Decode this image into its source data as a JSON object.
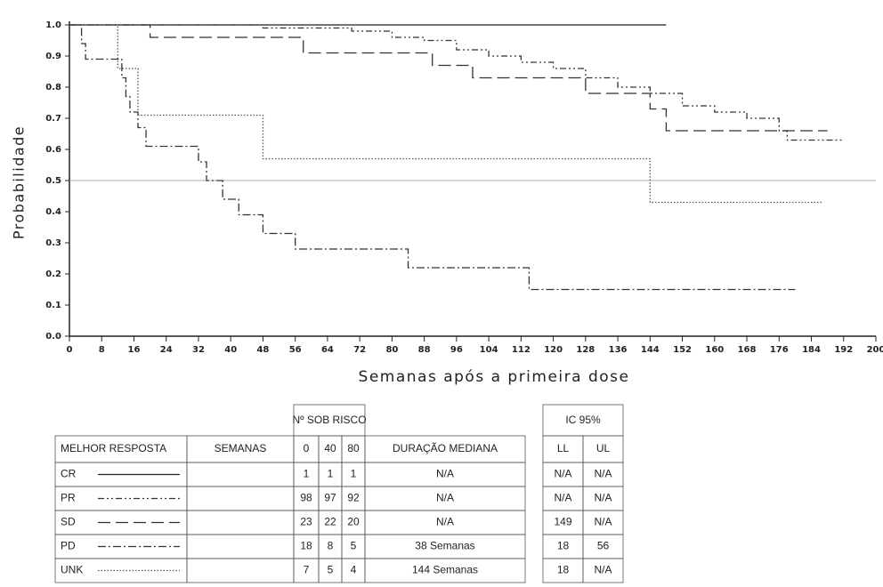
{
  "chart_data": {
    "type": "step",
    "y_label": "Probabilidade",
    "x_label": "Semanas após a primeira dose",
    "xlim": [
      0,
      200
    ],
    "xticks": [
      0,
      8,
      16,
      24,
      32,
      40,
      48,
      56,
      64,
      72,
      80,
      88,
      96,
      104,
      112,
      120,
      128,
      136,
      144,
      152,
      160,
      168,
      176,
      184,
      192,
      200
    ],
    "ylim": [
      0,
      1
    ],
    "yticks": [
      {
        "value": 0,
        "label": "0.0"
      },
      0.1,
      0.2,
      0.3,
      0.4,
      0.5,
      0.6,
      0.7,
      0.8,
      0.9,
      {
        "value": 1,
        "label": "1.0"
      }
    ],
    "reference_line": 0.5,
    "series": [
      {
        "name": "CR",
        "color": "#222222",
        "line_style": "solid",
        "x": [
          0,
          148
        ],
        "values": [
          1,
          1
        ]
      },
      {
        "name": "PR",
        "color": "#333333",
        "line_style": "dash-dot-dot",
        "x": [
          0,
          48,
          70,
          80,
          88,
          96,
          104,
          112,
          120,
          128,
          136,
          144,
          152,
          160,
          168,
          176,
          178,
          192
        ],
        "values": [
          1,
          0.99,
          0.98,
          0.96,
          0.95,
          0.92,
          0.9,
          0.88,
          0.86,
          0.83,
          0.8,
          0.78,
          0.74,
          0.72,
          0.7,
          0.66,
          0.63,
          0.63
        ]
      },
      {
        "name": "SD",
        "color": "#333333",
        "line_style": "long-dash",
        "x": [
          0,
          20,
          58,
          90,
          100,
          128,
          144,
          148,
          188
        ],
        "values": [
          1,
          0.96,
          0.91,
          0.87,
          0.83,
          0.78,
          0.73,
          0.66,
          0.66
        ]
      },
      {
        "name": "PD",
        "color": "#333333",
        "line_style": "dash-dot",
        "x": [
          0,
          3,
          4,
          13,
          14,
          15,
          17,
          19,
          32,
          34,
          38,
          42,
          48,
          56,
          84,
          114,
          180
        ],
        "values": [
          1,
          0.94,
          0.89,
          0.83,
          0.77,
          0.72,
          0.67,
          0.61,
          0.56,
          0.5,
          0.44,
          0.39,
          0.33,
          0.28,
          0.22,
          0.15,
          0.15
        ]
      },
      {
        "name": "UNK",
        "color": "#555555",
        "line_style": "dotted",
        "x": [
          0,
          12,
          17,
          48,
          144,
          187
        ],
        "values": [
          1,
          0.86,
          0.71,
          0.57,
          0.43,
          0.43
        ]
      }
    ]
  },
  "table": {
    "group_headers": [
      "Nº SOB RISCO",
      "IC 95%"
    ],
    "columns": [
      "MELHOR RESPOSTA",
      "SEMANAS",
      "0",
      "40",
      "80",
      "DURAÇÃO MEDIANA",
      "LL",
      "UL"
    ],
    "rows": [
      [
        1,
        1,
        1,
        "N/A",
        "N/A",
        "N/A"
      ],
      [
        98,
        97,
        92,
        "N/A",
        "N/A",
        "N/A"
      ],
      [
        23,
        22,
        20,
        "N/A",
        149,
        "N/A"
      ],
      [
        18,
        8,
        5,
        "38 Semanas",
        18,
        56
      ],
      [
        7,
        5,
        4,
        "144 Semanas",
        18,
        "N/A"
      ]
    ]
  }
}
